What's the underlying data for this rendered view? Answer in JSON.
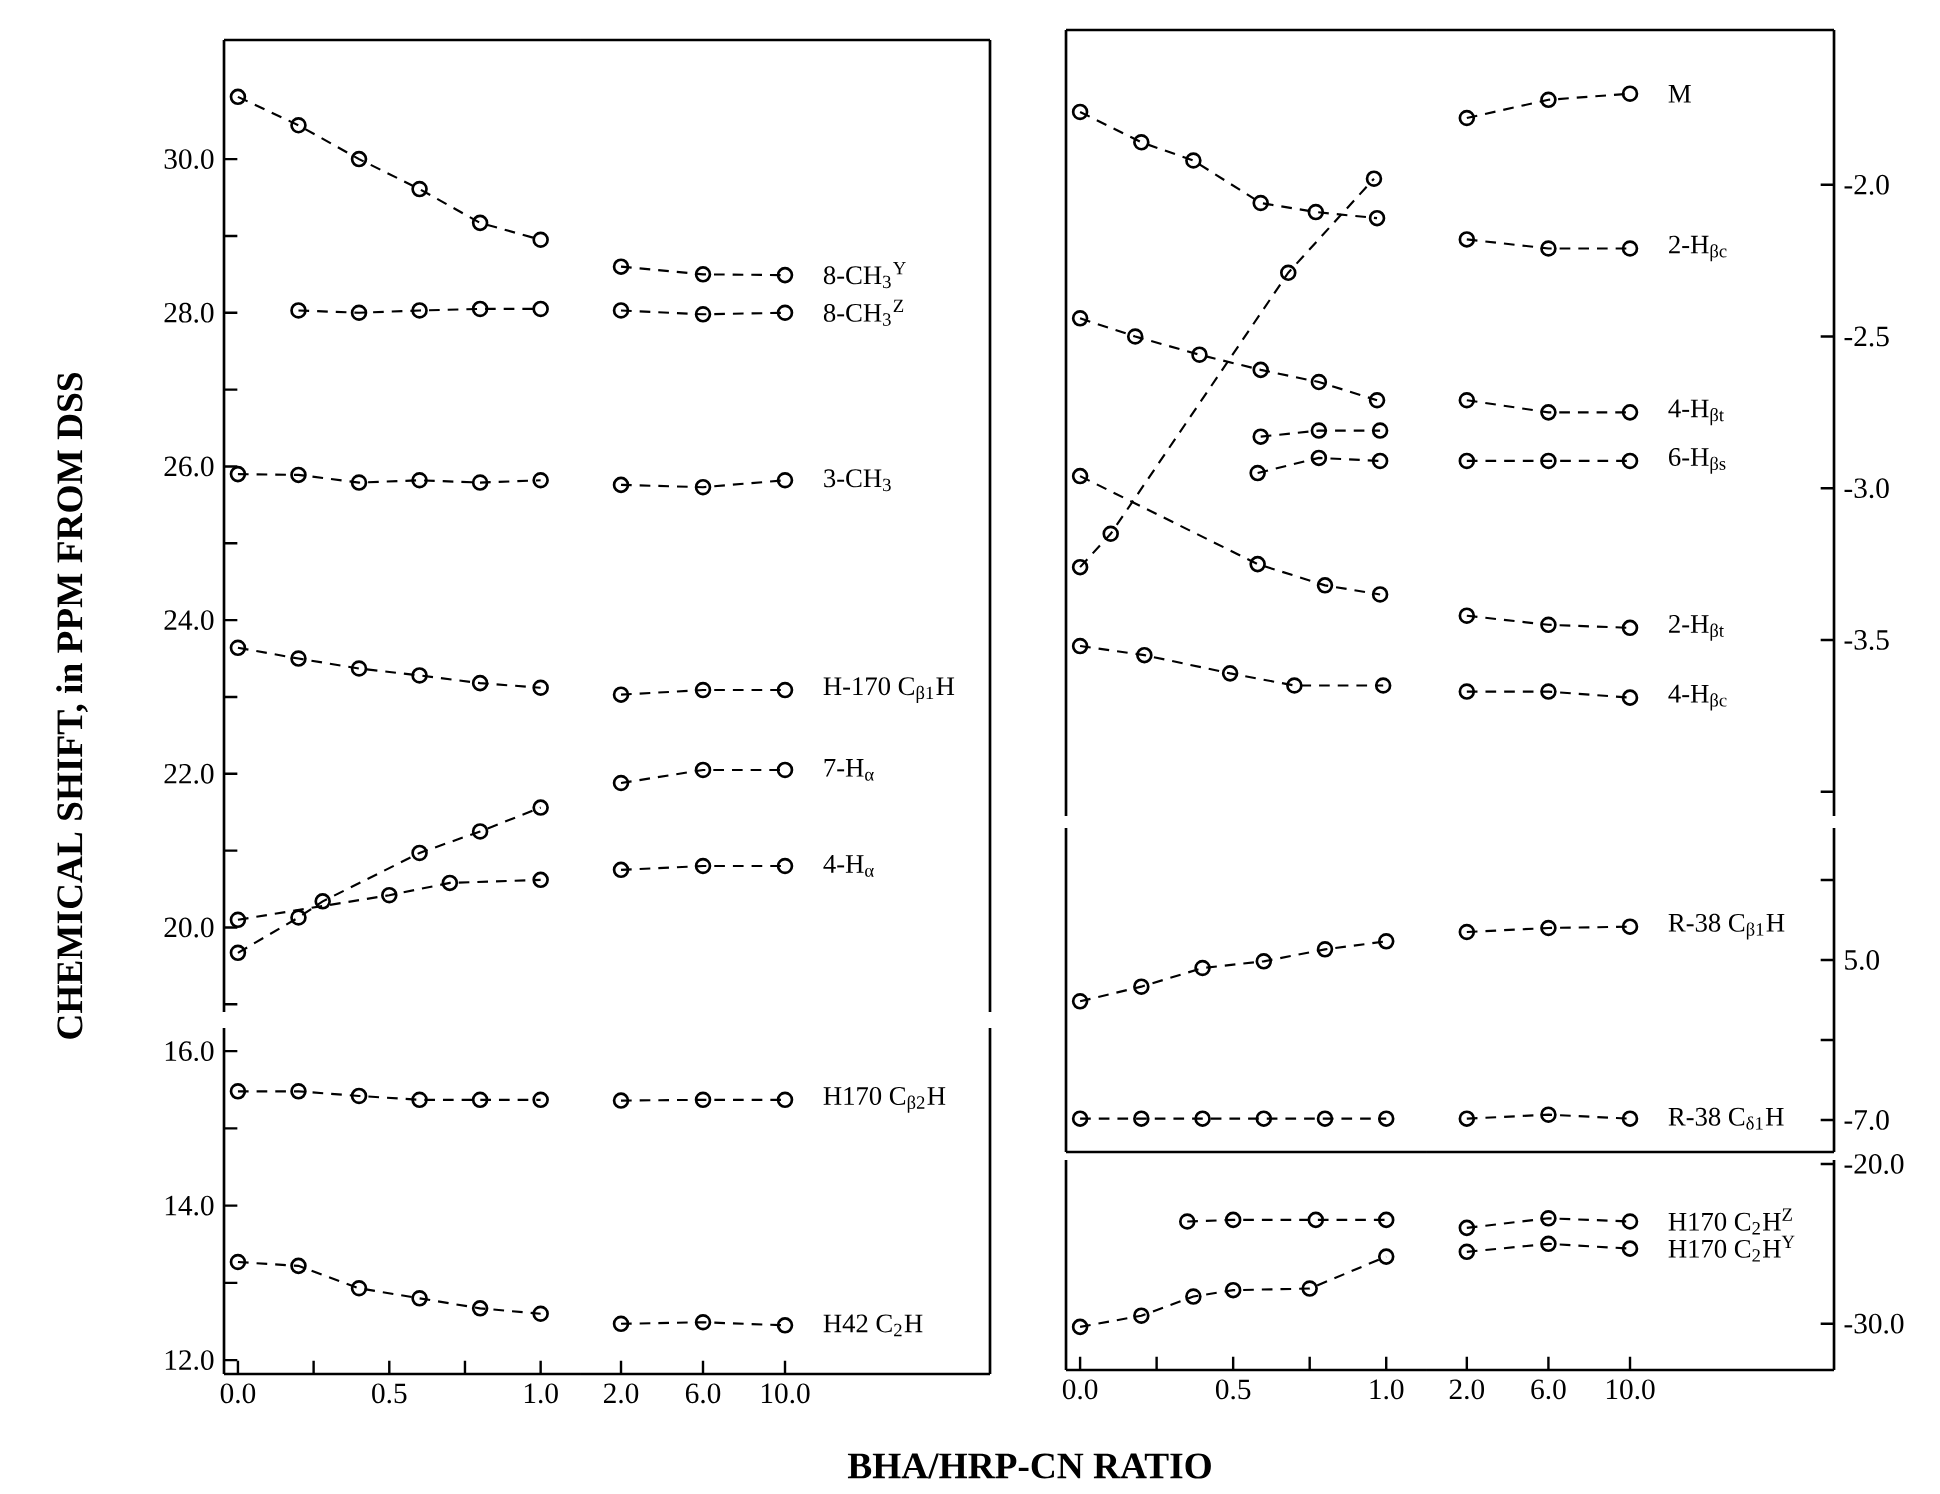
{
  "chart_data": [
    {
      "type": "line",
      "ylabel": "CHEMICAL SHIFT, in PPM FROM DSS",
      "xlim": [
        -0.046,
        1.13
      ],
      "ylim": [
        18.9,
        31.55
      ],
      "tick_labels": "y",
      "marker": "circle",
      "line_style": "dashed",
      "yticks": [
        {
          "value": 19,
          "label": null
        },
        {
          "value": 20,
          "label": "20.0"
        },
        {
          "value": 21,
          "label": null
        },
        {
          "value": 22,
          "label": "22.0"
        },
        {
          "value": 23,
          "label": null
        },
        {
          "value": 24,
          "label": "24.0"
        },
        {
          "value": 25,
          "label": null
        },
        {
          "value": 26,
          "label": "26.0"
        },
        {
          "value": 27,
          "label": null
        },
        {
          "value": 28,
          "label": "28.0"
        },
        {
          "value": 29,
          "label": null
        },
        {
          "value": 30,
          "label": "30.0"
        }
      ],
      "series": [
        {
          "color": "#000000",
          "x": [
            0,
            0.2,
            0.4,
            0.6,
            0.8,
            1.0
          ],
          "values": [
            30.81,
            30.44,
            30.0,
            29.61,
            29.17,
            28.95
          ]
        },
        {
          "color": "#000000",
          "x": [
            0.2,
            0.4,
            0.6,
            0.8,
            1.0
          ],
          "values": [
            28.03,
            28.0,
            28.03,
            28.05,
            28.05
          ]
        },
        {
          "color": "#000000",
          "x": [
            0,
            0.2,
            0.4,
            0.6,
            0.8,
            1.0
          ],
          "values": [
            25.9,
            25.89,
            25.79,
            25.82,
            25.79,
            25.82
          ]
        },
        {
          "color": "#000000",
          "x": [
            0,
            0.2,
            0.4,
            0.6,
            0.8,
            1.0
          ],
          "values": [
            23.64,
            23.5,
            23.37,
            23.28,
            23.18,
            23.12
          ]
        },
        {
          "color": "#000000",
          "x": [
            0,
            0.2,
            0.28,
            0.6,
            0.8,
            1.0
          ],
          "values": [
            19.67,
            20.13,
            20.34,
            20.97,
            21.25,
            21.56
          ]
        },
        {
          "color": "#000000",
          "x": [
            0,
            0.5,
            0.7,
            1.0
          ],
          "values": [
            20.1,
            20.42,
            20.58,
            20.62
          ]
        }
      ]
    },
    {
      "type": "line",
      "categories": [
        "2.0",
        "6.0",
        "10.0",
        null,
        null
      ],
      "ylim": [
        18.9,
        31.55
      ],
      "tick_labels": false,
      "marker": "circle",
      "line_style": "dashed",
      "series": [
        {
          "name": "8-CH$_{3}$$^{Y}$",
          "color": "#000000",
          "values": [
            28.6,
            28.5,
            28.49,
            null,
            null
          ]
        },
        {
          "name": "8-CH$_{3}$$^{Z}$",
          "color": "#000000",
          "values": [
            28.03,
            27.98,
            28.0,
            null,
            null
          ]
        },
        {
          "name": "3-CH$_{3}$",
          "color": "#000000",
          "values": [
            25.76,
            25.73,
            25.82,
            null,
            null
          ]
        },
        {
          "name": "H-170 C$_{β1}$H",
          "color": "#000000",
          "values": [
            23.03,
            23.09,
            23.09,
            null,
            null
          ]
        },
        {
          "name": "7-H$_{α}$",
          "color": "#000000",
          "values": [
            21.88,
            22.05,
            22.05,
            null,
            null
          ]
        },
        {
          "name": "4-H$_{α}$",
          "color": "#000000",
          "values": [
            20.75,
            20.8,
            20.8,
            null,
            null
          ]
        }
      ]
    },
    {
      "type": "line",
      "xlim": [
        -0.046,
        1.13
      ],
      "ylim": [
        11.82,
        16.3
      ],
      "marker": "circle",
      "line_style": "dashed",
      "xticks": [
        {
          "value": 0,
          "label": "0.0"
        },
        {
          "value": 0.25,
          "label": null
        },
        {
          "value": 0.5,
          "label": "0.5"
        },
        {
          "value": 0.75,
          "label": null
        },
        {
          "value": 1.0,
          "label": "1.0"
        }
      ],
      "yticks": [
        {
          "value": 12,
          "label": "12.0"
        },
        {
          "value": 13,
          "label": null
        },
        {
          "value": 14,
          "label": "14.0"
        },
        {
          "value": 15,
          "label": null
        },
        {
          "value": 16,
          "label": "16.0"
        }
      ],
      "series": [
        {
          "color": "#000000",
          "x": [
            0,
            0.2,
            0.4,
            0.6,
            0.8,
            1.0
          ],
          "values": [
            15.48,
            15.48,
            15.42,
            15.37,
            15.37,
            15.37
          ]
        },
        {
          "color": "#000000",
          "x": [
            0,
            0.2,
            0.4,
            0.6,
            0.8,
            1.0
          ],
          "values": [
            13.27,
            13.22,
            12.93,
            12.8,
            12.67,
            12.6
          ]
        }
      ]
    },
    {
      "type": "line",
      "categories": [
        "2.0",
        "6.0",
        "10.0",
        null,
        null
      ],
      "ylim": [
        11.82,
        16.3
      ],
      "tick_labels": "x",
      "marker": "circle",
      "line_style": "dashed",
      "series": [
        {
          "name": "H170 C$_{β2}$H",
          "color": "#000000",
          "values": [
            15.36,
            15.37,
            15.37,
            null,
            null
          ]
        },
        {
          "name": "H42 C$_{2}$H",
          "color": "#000000",
          "values": [
            12.47,
            12.49,
            12.45,
            null,
            null
          ]
        }
      ]
    },
    {
      "type": "line",
      "xlim": [
        -0.046,
        1.13
      ],
      "ylim": [
        -4.08,
        -1.49
      ],
      "tick_labels": false,
      "marker": "circle",
      "line_style": "dashed",
      "series": [
        {
          "color": "#000000",
          "x": [
            0,
            0.2,
            0.37,
            0.59,
            0.77,
            0.97
          ],
          "values": [
            -1.76,
            -1.86,
            -1.92,
            -2.06,
            -2.09,
            -2.11
          ]
        },
        {
          "color": "#000000",
          "x": [
            0,
            0.1,
            0.68,
            0.96
          ],
          "values": [
            -3.26,
            -3.15,
            -2.29,
            -1.98
          ]
        },
        {
          "color": "#000000",
          "x": [
            0,
            0.18,
            0.39,
            0.59,
            0.78,
            0.97
          ],
          "values": [
            -2.44,
            -2.5,
            -2.56,
            -2.61,
            -2.65,
            -2.71
          ]
        },
        {
          "color": "#000000",
          "x": [
            0.59,
            0.78,
            0.98
          ],
          "values": [
            -2.83,
            -2.81,
            -2.81
          ]
        },
        {
          "color": "#000000",
          "x": [
            0.58,
            0.78,
            0.98
          ],
          "values": [
            -2.95,
            -2.9,
            -2.91
          ]
        },
        {
          "color": "#000000",
          "x": [
            0,
            0.58,
            0.8,
            0.98
          ],
          "values": [
            -2.96,
            -3.25,
            -3.32,
            -3.35
          ]
        },
        {
          "color": "#000000",
          "x": [
            0,
            0.21,
            0.49,
            0.7,
            0.99
          ],
          "values": [
            -3.52,
            -3.55,
            -3.61,
            -3.65,
            -3.65
          ]
        }
      ]
    },
    {
      "type": "line",
      "categories": [
        "2.0",
        "6.0",
        "10.0",
        null,
        null
      ],
      "ylim": [
        -4.08,
        -1.49
      ],
      "tick_labels": "y",
      "marker": "circle",
      "line_style": "dashed",
      "yticks": [
        {
          "value": -4.0,
          "label": null
        },
        {
          "value": -3.5,
          "label": "-3.5"
        },
        {
          "value": -3.0,
          "label": "-3.0"
        },
        {
          "value": -2.5,
          "label": "-2.5"
        },
        {
          "value": -2.0,
          "label": "-2.0"
        }
      ],
      "series": [
        {
          "name": "M",
          "color": "#000000",
          "values": [
            -1.78,
            -1.72,
            -1.7,
            null,
            null
          ]
        },
        {
          "name": "2-H$_{βc}$",
          "color": "#000000",
          "values": [
            -2.18,
            -2.21,
            -2.21,
            null,
            null
          ]
        },
        {
          "name": "4-H$_{βt}$",
          "color": "#000000",
          "values": [
            -2.71,
            -2.75,
            -2.75,
            null,
            null
          ]
        },
        {
          "name": "6-H$_{βs}$",
          "color": "#000000",
          "values": [
            -2.91,
            -2.91,
            -2.91,
            null,
            null
          ]
        },
        {
          "name": "2-H$_{βt}$",
          "color": "#000000",
          "values": [
            -3.42,
            -3.45,
            -3.46,
            null,
            null
          ]
        },
        {
          "name": "4-H$_{βc}$",
          "color": "#000000",
          "values": [
            -3.67,
            -3.67,
            -3.69,
            null,
            null
          ]
        }
      ]
    },
    {
      "type": "line",
      "xlim": [
        -0.046,
        1.13
      ],
      "ylim": [
        -9.4,
        14.9
      ],
      "tick_labels": false,
      "marker": "circle",
      "line_style": "dashed",
      "series": [
        {
          "color": "#000000",
          "x": [
            0,
            0.2,
            0.4,
            0.6,
            0.8,
            1.0
          ],
          "values": [
            1.9,
            3.0,
            4.4,
            4.9,
            5.8,
            6.4
          ]
        },
        {
          "color": "#000000",
          "x": [
            0,
            0.2,
            0.4,
            0.6,
            0.8,
            1.0
          ],
          "values": [
            -6.9,
            -6.9,
            -6.9,
            -6.9,
            -6.9,
            -6.9
          ]
        }
      ]
    },
    {
      "type": "line",
      "categories": [
        "2.0",
        "6.0",
        "10.0",
        null,
        null
      ],
      "ylim": [
        -9.4,
        14.9
      ],
      "tick_labels": "y",
      "marker": "circle",
      "line_style": "dashed",
      "yticks": [
        {
          "value": -7,
          "label": "-7.0"
        },
        {
          "value": -1,
          "label": null
        },
        {
          "value": 5,
          "label": "5.0"
        },
        {
          "value": 11,
          "label": null
        }
      ],
      "series": [
        {
          "name": "R-38 C$_{β1}$H",
          "color": "#000000",
          "values": [
            7.1,
            7.4,
            7.5,
            null,
            null
          ]
        },
        {
          "name": "R-38 C$_{δ1}$H",
          "color": "#000000",
          "values": [
            -6.9,
            -6.6,
            -6.9,
            null,
            null
          ]
        }
      ]
    },
    {
      "type": "line",
      "xlabel": "BHA/HRP-CN RATIO",
      "xlim": [
        -0.046,
        1.13
      ],
      "ylim": [
        -32.9,
        -19.75
      ],
      "tick_labels": "x",
      "marker": "circle",
      "line_style": "dashed",
      "xticks": [
        {
          "value": 0,
          "label": "0.0"
        },
        {
          "value": 0.25,
          "label": null
        },
        {
          "value": 0.5,
          "label": "0.5"
        },
        {
          "value": 0.75,
          "label": null
        },
        {
          "value": 1.0,
          "label": "1.0"
        }
      ],
      "series": [
        {
          "color": "#000000",
          "x": [
            0.35,
            0.5,
            0.77,
            1.0
          ],
          "values": [
            -23.6,
            -23.5,
            -23.5,
            -23.5
          ]
        },
        {
          "color": "#000000",
          "x": [
            0,
            0.2,
            0.37,
            0.5,
            0.75,
            1.0
          ],
          "values": [
            -30.2,
            -29.5,
            -28.3,
            -27.9,
            -27.8,
            -25.8
          ]
        }
      ]
    },
    {
      "type": "line",
      "categories": [
        "2.0",
        "6.0",
        "10.0",
        null,
        null
      ],
      "ylim": [
        -32.9,
        -19.75
      ],
      "marker": "circle",
      "line_style": "dashed",
      "yticks": [
        {
          "value": -30,
          "label": "-30.0"
        },
        {
          "value": -20,
          "label": "-20.0"
        }
      ],
      "series": [
        {
          "name": "H170 C$_{2}$H$^{Z}$",
          "color": "#000000",
          "values": [
            -24.0,
            -23.4,
            -23.6,
            null,
            null
          ]
        },
        {
          "name": "H170 C$_{2}$H$^{Y}$",
          "color": "#000000",
          "values": [
            -25.5,
            -25.0,
            -25.3,
            null,
            null
          ]
        }
      ]
    }
  ]
}
